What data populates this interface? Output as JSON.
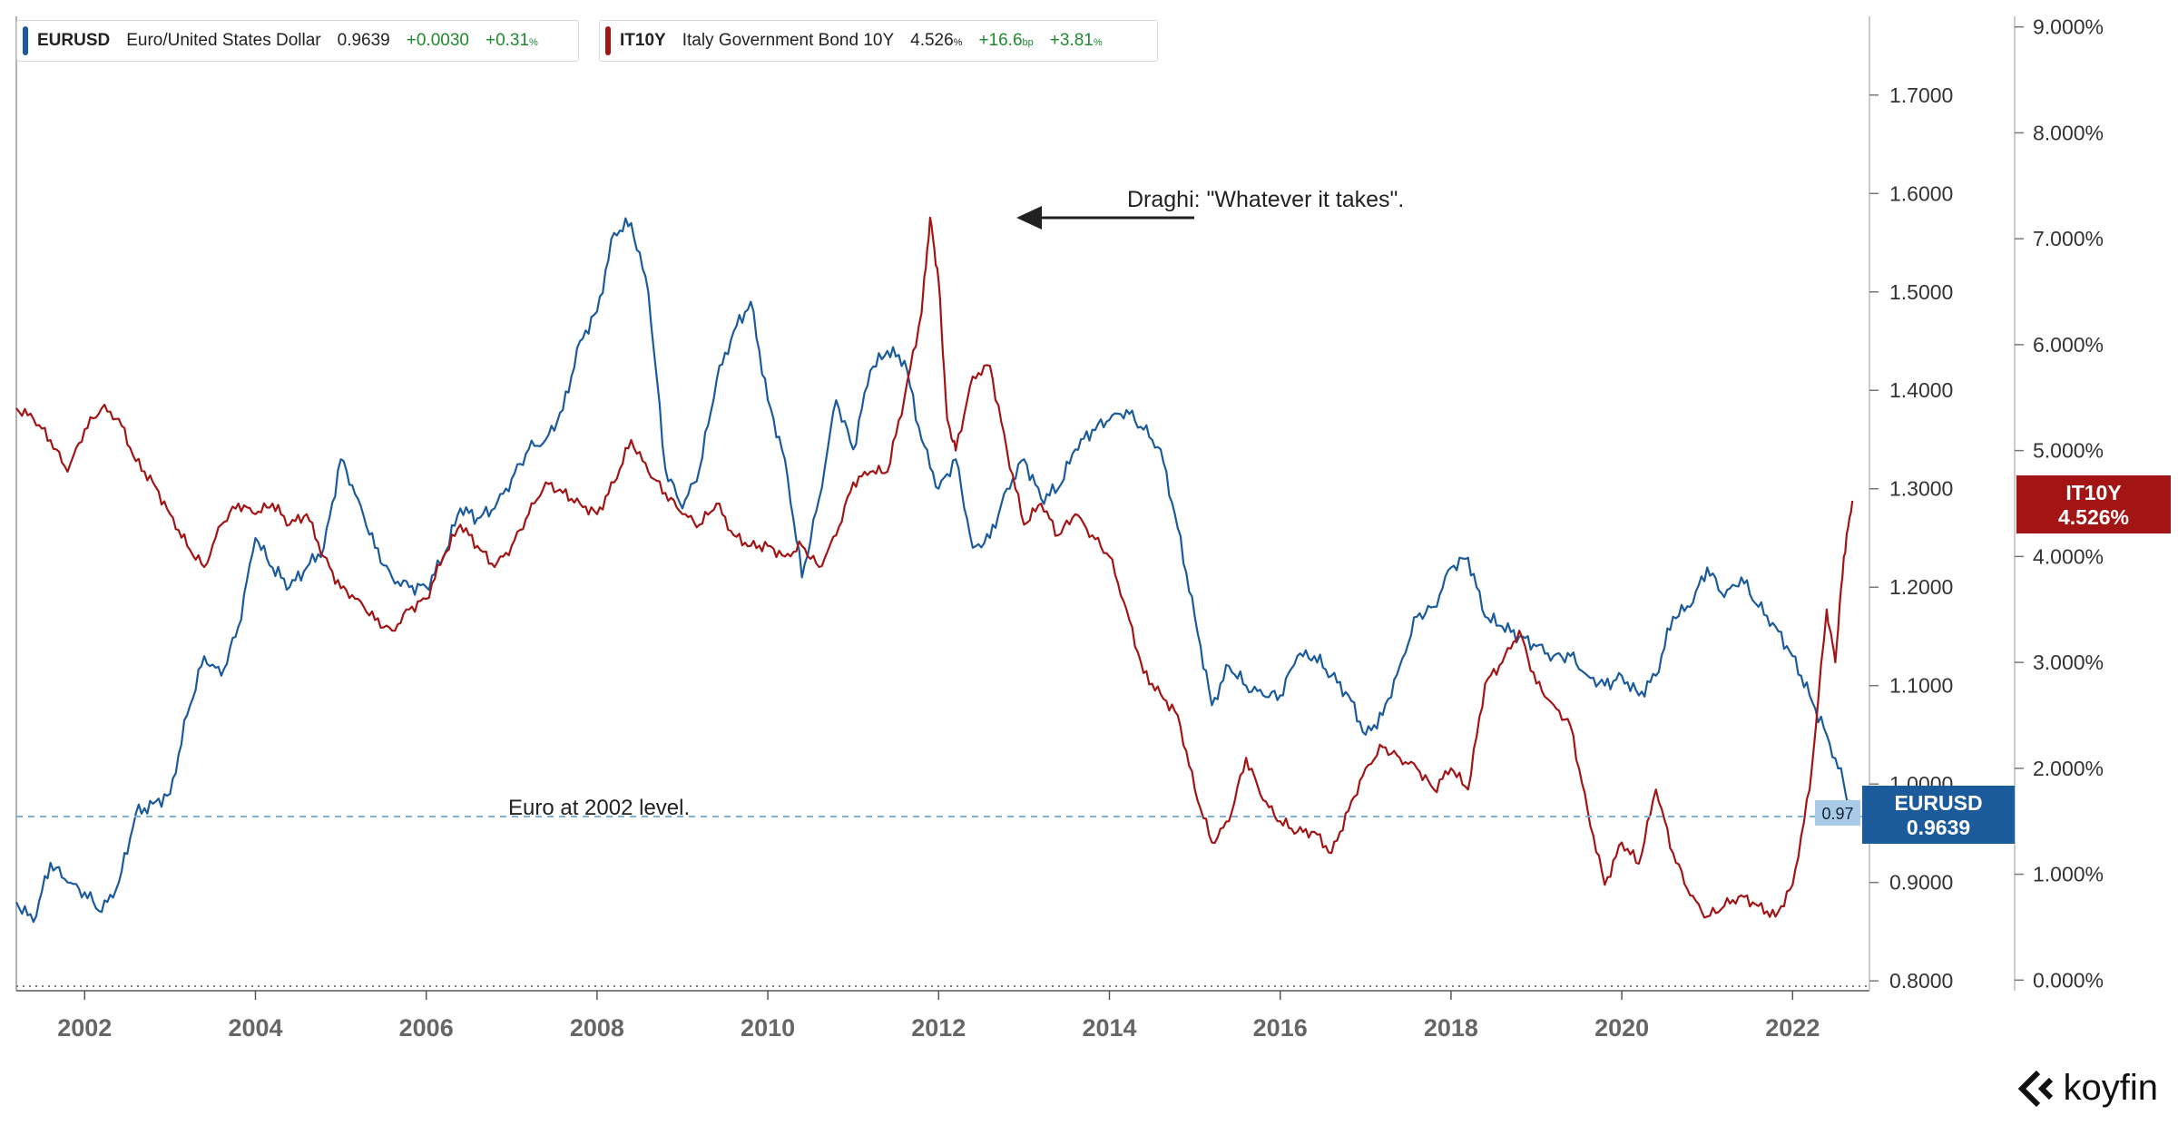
{
  "legend": [
    {
      "ticker": "EURUSD",
      "name": "Euro/United States Dollar",
      "last": "0.9639",
      "change": "+0.0030",
      "pct": "+0.31",
      "pct_unit": "%",
      "color": "#1b5b9c"
    },
    {
      "ticker": "IT10Y",
      "name": "Italy Government Bond 10Y",
      "last": "4.526",
      "last_unit": "%",
      "change": "+16.6",
      "change_unit": "bp",
      "pct": "+3.81",
      "pct_unit": "%",
      "color": "#a31515"
    }
  ],
  "annotations": {
    "draghi": "Draghi: \"Whatever it takes\".",
    "euro_level": "Euro at 2002 level."
  },
  "badges": {
    "eurusd_small": "0.97",
    "eurusd_title": "EURUSD",
    "eurusd_value": "0.9639",
    "it10y_title": "IT10Y",
    "it10y_value": "4.526%"
  },
  "logo": "koyfin",
  "colors": {
    "eurusd": "#1b5b9c",
    "it10y": "#a31515",
    "reference": "#7fb1d9",
    "badge_blue": "#1b5b9c",
    "badge_red": "#a31515"
  },
  "chart_data": {
    "type": "line",
    "x_ticks": [
      "2002",
      "2004",
      "2006",
      "2008",
      "2010",
      "2012",
      "2014",
      "2016",
      "2018",
      "2020",
      "2022"
    ],
    "xlim": [
      2001.2,
      2022.9
    ],
    "left_axis": {
      "series": "EURUSD",
      "ticks": [
        "0.8000",
        "0.9000",
        "1.0000",
        "1.1000",
        "1.2000",
        "1.3000",
        "1.4000",
        "1.5000",
        "1.6000",
        "1.7000"
      ],
      "ylim": [
        0.79,
        1.78
      ]
    },
    "right_axis": {
      "series": "IT10Y",
      "ticks": [
        "0.000%",
        "1.000%",
        "2.000%",
        "3.000%",
        "4.000%",
        "5.000%",
        "6.000%",
        "7.000%",
        "8.000%",
        "9.000%"
      ],
      "ylim": [
        -0.1,
        9.1
      ]
    },
    "reference_line": {
      "axis": "left",
      "value": 0.967,
      "label": "Euro at 2002 level."
    },
    "series": [
      {
        "name": "EURUSD",
        "axis": "left",
        "color": "#1b5b9c",
        "points": [
          [
            2001.2,
            0.88
          ],
          [
            2001.4,
            0.86
          ],
          [
            2001.6,
            0.92
          ],
          [
            2001.8,
            0.9
          ],
          [
            2002.0,
            0.89
          ],
          [
            2002.2,
            0.87
          ],
          [
            2002.4,
            0.9
          ],
          [
            2002.6,
            0.97
          ],
          [
            2002.8,
            0.98
          ],
          [
            2003.0,
            0.99
          ],
          [
            2003.2,
            1.07
          ],
          [
            2003.4,
            1.13
          ],
          [
            2003.6,
            1.11
          ],
          [
            2003.8,
            1.16
          ],
          [
            2004.0,
            1.25
          ],
          [
            2004.2,
            1.22
          ],
          [
            2004.4,
            1.2
          ],
          [
            2004.6,
            1.22
          ],
          [
            2004.8,
            1.24
          ],
          [
            2005.0,
            1.33
          ],
          [
            2005.2,
            1.29
          ],
          [
            2005.4,
            1.24
          ],
          [
            2005.6,
            1.21
          ],
          [
            2005.8,
            1.2
          ],
          [
            2006.0,
            1.2
          ],
          [
            2006.2,
            1.23
          ],
          [
            2006.4,
            1.28
          ],
          [
            2006.6,
            1.27
          ],
          [
            2006.8,
            1.28
          ],
          [
            2007.0,
            1.31
          ],
          [
            2007.2,
            1.34
          ],
          [
            2007.4,
            1.35
          ],
          [
            2007.6,
            1.38
          ],
          [
            2007.8,
            1.45
          ],
          [
            2008.0,
            1.48
          ],
          [
            2008.2,
            1.56
          ],
          [
            2008.4,
            1.57
          ],
          [
            2008.6,
            1.5
          ],
          [
            2008.8,
            1.32
          ],
          [
            2009.0,
            1.28
          ],
          [
            2009.2,
            1.32
          ],
          [
            2009.4,
            1.41
          ],
          [
            2009.6,
            1.46
          ],
          [
            2009.8,
            1.49
          ],
          [
            2010.0,
            1.39
          ],
          [
            2010.2,
            1.33
          ],
          [
            2010.4,
            1.21
          ],
          [
            2010.6,
            1.29
          ],
          [
            2010.8,
            1.39
          ],
          [
            2011.0,
            1.34
          ],
          [
            2011.2,
            1.42
          ],
          [
            2011.4,
            1.44
          ],
          [
            2011.6,
            1.43
          ],
          [
            2011.8,
            1.35
          ],
          [
            2012.0,
            1.3
          ],
          [
            2012.2,
            1.33
          ],
          [
            2012.4,
            1.24
          ],
          [
            2012.6,
            1.25
          ],
          [
            2012.8,
            1.3
          ],
          [
            2013.0,
            1.33
          ],
          [
            2013.2,
            1.29
          ],
          [
            2013.4,
            1.3
          ],
          [
            2013.6,
            1.34
          ],
          [
            2013.8,
            1.36
          ],
          [
            2014.0,
            1.37
          ],
          [
            2014.2,
            1.38
          ],
          [
            2014.4,
            1.36
          ],
          [
            2014.6,
            1.34
          ],
          [
            2014.8,
            1.26
          ],
          [
            2015.0,
            1.17
          ],
          [
            2015.2,
            1.08
          ],
          [
            2015.4,
            1.12
          ],
          [
            2015.6,
            1.1
          ],
          [
            2015.8,
            1.09
          ],
          [
            2016.0,
            1.09
          ],
          [
            2016.2,
            1.13
          ],
          [
            2016.4,
            1.13
          ],
          [
            2016.6,
            1.11
          ],
          [
            2016.8,
            1.09
          ],
          [
            2017.0,
            1.05
          ],
          [
            2017.2,
            1.07
          ],
          [
            2017.4,
            1.12
          ],
          [
            2017.6,
            1.17
          ],
          [
            2017.8,
            1.18
          ],
          [
            2018.0,
            1.22
          ],
          [
            2018.2,
            1.23
          ],
          [
            2018.4,
            1.17
          ],
          [
            2018.6,
            1.16
          ],
          [
            2018.8,
            1.15
          ],
          [
            2019.0,
            1.14
          ],
          [
            2019.2,
            1.13
          ],
          [
            2019.4,
            1.13
          ],
          [
            2019.6,
            1.11
          ],
          [
            2019.8,
            1.1
          ],
          [
            2020.0,
            1.11
          ],
          [
            2020.2,
            1.09
          ],
          [
            2020.4,
            1.11
          ],
          [
            2020.6,
            1.17
          ],
          [
            2020.8,
            1.18
          ],
          [
            2021.0,
            1.22
          ],
          [
            2021.2,
            1.19
          ],
          [
            2021.4,
            1.21
          ],
          [
            2021.6,
            1.18
          ],
          [
            2021.8,
            1.16
          ],
          [
            2022.0,
            1.13
          ],
          [
            2022.2,
            1.09
          ],
          [
            2022.4,
            1.05
          ],
          [
            2022.6,
            1.0
          ],
          [
            2022.7,
            0.9639
          ]
        ]
      },
      {
        "name": "IT10Y",
        "axis": "right",
        "color": "#a31515",
        "points": [
          [
            2001.2,
            5.4
          ],
          [
            2001.4,
            5.3
          ],
          [
            2001.6,
            5.1
          ],
          [
            2001.8,
            4.8
          ],
          [
            2002.0,
            5.2
          ],
          [
            2002.2,
            5.4
          ],
          [
            2002.4,
            5.3
          ],
          [
            2002.6,
            4.9
          ],
          [
            2002.8,
            4.7
          ],
          [
            2003.0,
            4.4
          ],
          [
            2003.2,
            4.1
          ],
          [
            2003.4,
            3.9
          ],
          [
            2003.6,
            4.3
          ],
          [
            2003.8,
            4.5
          ],
          [
            2004.0,
            4.4
          ],
          [
            2004.2,
            4.5
          ],
          [
            2004.4,
            4.3
          ],
          [
            2004.6,
            4.4
          ],
          [
            2004.8,
            4.0
          ],
          [
            2005.0,
            3.7
          ],
          [
            2005.2,
            3.6
          ],
          [
            2005.4,
            3.4
          ],
          [
            2005.6,
            3.3
          ],
          [
            2005.8,
            3.5
          ],
          [
            2006.0,
            3.6
          ],
          [
            2006.2,
            4.0
          ],
          [
            2006.4,
            4.3
          ],
          [
            2006.6,
            4.1
          ],
          [
            2006.8,
            3.9
          ],
          [
            2007.0,
            4.1
          ],
          [
            2007.2,
            4.4
          ],
          [
            2007.4,
            4.7
          ],
          [
            2007.6,
            4.6
          ],
          [
            2007.8,
            4.5
          ],
          [
            2008.0,
            4.4
          ],
          [
            2008.2,
            4.7
          ],
          [
            2008.4,
            5.1
          ],
          [
            2008.6,
            4.8
          ],
          [
            2008.8,
            4.6
          ],
          [
            2009.0,
            4.4
          ],
          [
            2009.2,
            4.3
          ],
          [
            2009.4,
            4.5
          ],
          [
            2009.6,
            4.2
          ],
          [
            2009.8,
            4.1
          ],
          [
            2010.0,
            4.1
          ],
          [
            2010.2,
            4.0
          ],
          [
            2010.4,
            4.1
          ],
          [
            2010.6,
            3.9
          ],
          [
            2010.8,
            4.2
          ],
          [
            2011.0,
            4.7
          ],
          [
            2011.2,
            4.8
          ],
          [
            2011.4,
            4.8
          ],
          [
            2011.6,
            5.5
          ],
          [
            2011.8,
            6.3
          ],
          [
            2011.9,
            7.2
          ],
          [
            2012.0,
            6.6
          ],
          [
            2012.1,
            5.3
          ],
          [
            2012.2,
            5.0
          ],
          [
            2012.4,
            5.7
          ],
          [
            2012.6,
            5.8
          ],
          [
            2012.8,
            5.0
          ],
          [
            2013.0,
            4.3
          ],
          [
            2013.2,
            4.5
          ],
          [
            2013.4,
            4.2
          ],
          [
            2013.6,
            4.4
          ],
          [
            2013.8,
            4.2
          ],
          [
            2014.0,
            4.0
          ],
          [
            2014.2,
            3.5
          ],
          [
            2014.4,
            2.9
          ],
          [
            2014.6,
            2.7
          ],
          [
            2014.8,
            2.5
          ],
          [
            2015.0,
            1.8
          ],
          [
            2015.2,
            1.3
          ],
          [
            2015.4,
            1.5
          ],
          [
            2015.6,
            2.1
          ],
          [
            2015.8,
            1.7
          ],
          [
            2016.0,
            1.5
          ],
          [
            2016.2,
            1.4
          ],
          [
            2016.4,
            1.4
          ],
          [
            2016.6,
            1.2
          ],
          [
            2016.8,
            1.6
          ],
          [
            2017.0,
            2.0
          ],
          [
            2017.2,
            2.2
          ],
          [
            2017.4,
            2.1
          ],
          [
            2017.6,
            2.0
          ],
          [
            2017.8,
            1.8
          ],
          [
            2018.0,
            2.0
          ],
          [
            2018.2,
            1.8
          ],
          [
            2018.4,
            2.8
          ],
          [
            2018.6,
            3.0
          ],
          [
            2018.8,
            3.3
          ],
          [
            2019.0,
            2.8
          ],
          [
            2019.2,
            2.6
          ],
          [
            2019.4,
            2.4
          ],
          [
            2019.6,
            1.6
          ],
          [
            2019.8,
            0.9
          ],
          [
            2020.0,
            1.3
          ],
          [
            2020.2,
            1.1
          ],
          [
            2020.4,
            1.8
          ],
          [
            2020.6,
            1.2
          ],
          [
            2020.8,
            0.8
          ],
          [
            2021.0,
            0.6
          ],
          [
            2021.2,
            0.7
          ],
          [
            2021.4,
            0.8
          ],
          [
            2021.6,
            0.7
          ],
          [
            2021.8,
            0.6
          ],
          [
            2022.0,
            0.9
          ],
          [
            2022.2,
            1.8
          ],
          [
            2022.4,
            3.5
          ],
          [
            2022.5,
            3.0
          ],
          [
            2022.6,
            4.0
          ],
          [
            2022.7,
            4.526
          ]
        ]
      }
    ]
  }
}
